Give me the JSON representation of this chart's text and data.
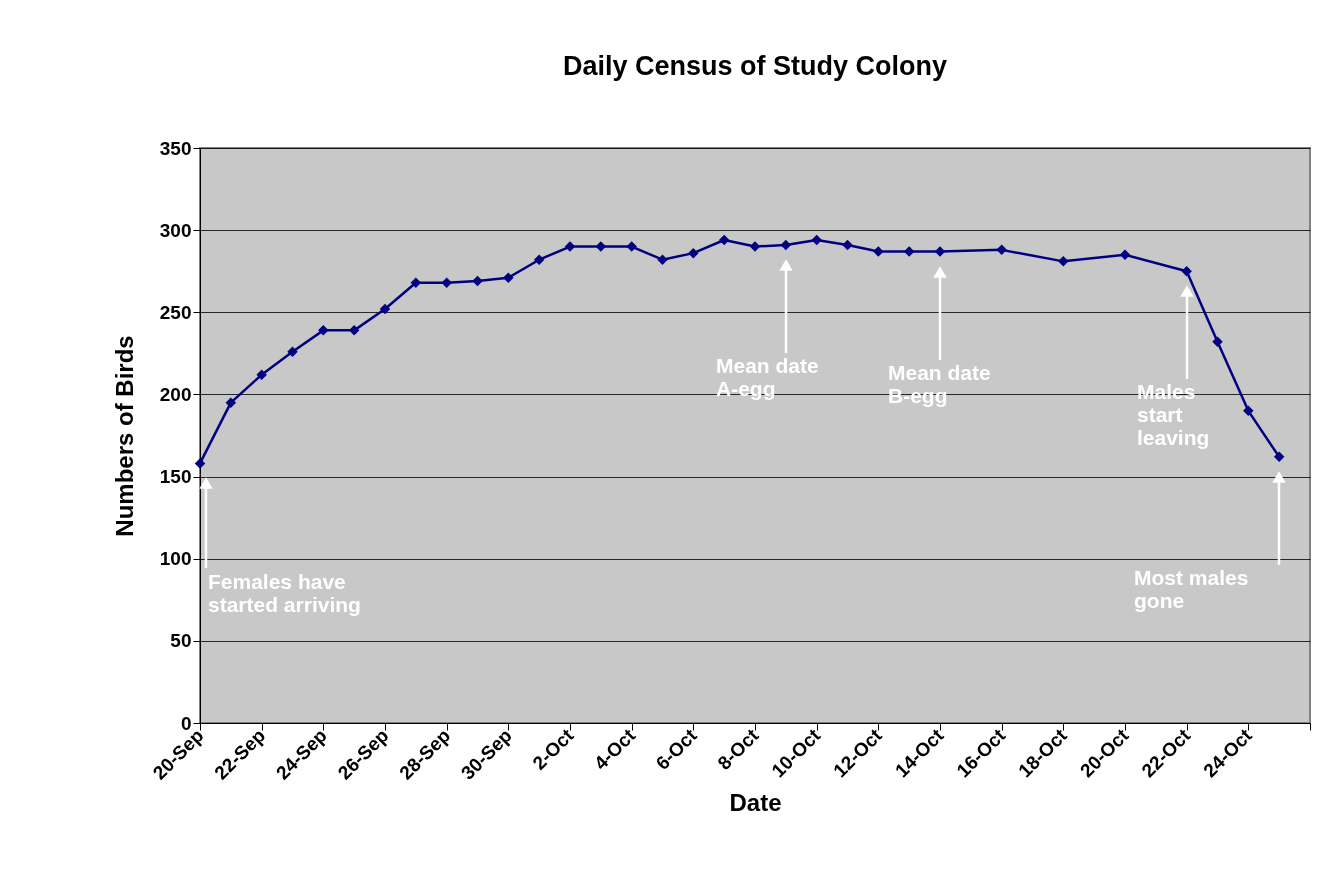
{
  "chart_data": {
    "type": "line",
    "title": "Daily Census of Study Colony",
    "xlabel": "Date",
    "ylabel": "Numbers of Birds",
    "x": [
      "--09-20",
      "--09-21",
      "--09-22",
      "--09-23",
      "--09-24",
      "--09-25",
      "--09-26",
      "--09-27",
      "--09-28",
      "--09-29",
      "--09-30",
      "--10-01",
      "--10-02",
      "--10-03",
      "--10-04",
      "--10-05",
      "--10-06",
      "--10-07",
      "--10-08",
      "--10-09",
      "--10-10",
      "--10-11",
      "--10-12",
      "--10-13",
      "--10-14",
      "--10-16",
      "--10-18",
      "--10-20",
      "--10-22",
      "--10-23",
      "--10-24",
      "--10-25"
    ],
    "series": [
      {
        "color": "#000080",
        "values": [
          158,
          195,
          212,
          226,
          239,
          239,
          252,
          268,
          268,
          269,
          271,
          282,
          290,
          290,
          290,
          282,
          286,
          294,
          290,
          291,
          294,
          291,
          287,
          287,
          287,
          288,
          281,
          285,
          275,
          232,
          190,
          162
        ]
      }
    ],
    "xlim": [
      "--09-20",
      "--10-26"
    ],
    "xticks": [
      {
        "value": "--09-20",
        "label": "20-Sep"
      },
      {
        "value": "--09-22",
        "label": "22-Sep"
      },
      {
        "value": "--09-24",
        "label": "24-Sep"
      },
      {
        "value": "--09-26",
        "label": "26-Sep"
      },
      {
        "value": "--09-28",
        "label": "28-Sep"
      },
      {
        "value": "--09-30",
        "label": "30-Sep"
      },
      {
        "value": "--10-02",
        "label": "2-Oct"
      },
      {
        "value": "--10-04",
        "label": "4-Oct"
      },
      {
        "value": "--10-06",
        "label": "6-Oct"
      },
      {
        "value": "--10-08",
        "label": "8-Oct"
      },
      {
        "value": "--10-10",
        "label": "10-Oct"
      },
      {
        "value": "--10-12",
        "label": "12-Oct"
      },
      {
        "value": "--10-14",
        "label": "14-Oct"
      },
      {
        "value": "--10-16",
        "label": "16-Oct"
      },
      {
        "value": "--10-18",
        "label": "18-Oct"
      },
      {
        "value": "--10-20",
        "label": "20-Oct"
      },
      {
        "value": "--10-22",
        "label": "22-Oct"
      },
      {
        "value": "--10-24",
        "label": "24-Oct"
      },
      {
        "value": "--10-26",
        "label": null
      }
    ],
    "ylim": [
      0,
      350
    ],
    "yticks": [
      0,
      50,
      100,
      150,
      200,
      250,
      300,
      350
    ],
    "grid": "y",
    "marker": "diamond",
    "line_style": "solid",
    "annotations": [
      "Females have\nstarted arriving",
      "Mean date\nA-egg",
      "Mean date\nB-egg",
      "Males\nstart\nleaving",
      "Most males\ngone"
    ]
  }
}
